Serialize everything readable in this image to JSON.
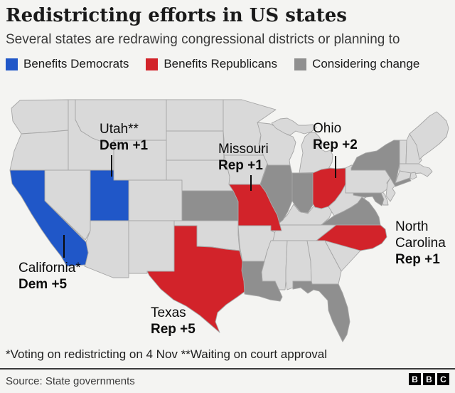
{
  "header": {
    "title": "Redistricting efforts in US states",
    "subtitle": "Several states are redrawing congressional districts or planning to"
  },
  "legend": {
    "items": [
      {
        "label": "Benefits Democrats",
        "color": "#2057c8"
      },
      {
        "label": "Benefits Republicans",
        "color": "#d2232a"
      },
      {
        "label": "Considering change",
        "color": "#8f8f8f"
      }
    ]
  },
  "map": {
    "status_colors": {
      "dem": "#2057c8",
      "rep": "#d2232a",
      "considering": "#8f8f8f",
      "default": "#d9d9d9",
      "border": "#a6a6a6",
      "ocean": "#f4f4f2"
    },
    "states": {
      "benefits_democrats": [
        "California",
        "Utah"
      ],
      "benefits_republicans": [
        "Texas",
        "Missouri",
        "Ohio",
        "North Carolina"
      ],
      "considering_change": [
        "Kansas",
        "Illinois",
        "Indiana",
        "New York",
        "Maryland",
        "Virginia",
        "Louisiana",
        "Florida"
      ]
    },
    "callouts": {
      "utah": {
        "name": "Utah**",
        "value": "Dem +1"
      },
      "missouri": {
        "name": "Missouri",
        "value": "Rep +1"
      },
      "ohio": {
        "name": "Ohio",
        "value": "Rep +2"
      },
      "north_carolina": {
        "name": "North Carolina",
        "value": "Rep +1"
      },
      "california": {
        "name": "California*",
        "value": "Dem +5"
      },
      "texas": {
        "name": "Texas",
        "value": "Rep +5"
      }
    }
  },
  "footer": {
    "footnote": "*Voting on redistricting on 4 Nov **Waiting on court approval",
    "source": "Source: State governments",
    "logo_blocks": [
      "B",
      "B",
      "C"
    ]
  }
}
